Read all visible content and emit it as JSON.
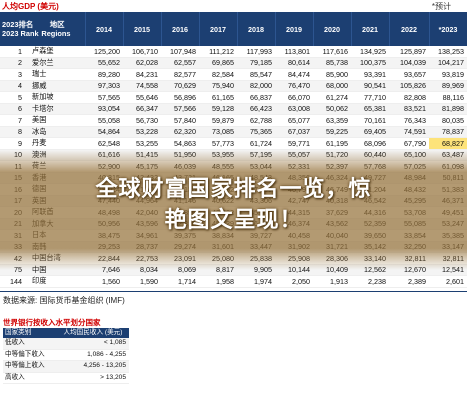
{
  "title": {
    "left": "人均GDP (美元)",
    "right": "*预计"
  },
  "header": {
    "rank_line1": "2023排名",
    "rank_line2": "2023 Rank",
    "region_line1": "地区",
    "region_line2": "Regions",
    "years": [
      "2014",
      "2015",
      "2016",
      "2017",
      "2018",
      "2019",
      "2020",
      "2021",
      "2022",
      "*2023"
    ]
  },
  "rows": [
    {
      "rank": "1",
      "name": "卢森堡",
      "values": [
        "125,200",
        "106,710",
        "107,948",
        "111,212",
        "117,993",
        "113,801",
        "117,616",
        "134,925",
        "125,897",
        "138,253"
      ]
    },
    {
      "rank": "2",
      "name": "爱尔兰",
      "values": [
        "55,652",
        "62,028",
        "62,557",
        "69,865",
        "79,185",
        "80,614",
        "85,738",
        "100,375",
        "104,039",
        "104,217"
      ]
    },
    {
      "rank": "3",
      "name": "瑞士",
      "values": [
        "89,280",
        "84,231",
        "82,577",
        "82,584",
        "85,547",
        "84,474",
        "85,900",
        "93,391",
        "93,657",
        "93,819"
      ]
    },
    {
      "rank": "4",
      "name": "挪威",
      "values": [
        "97,303",
        "74,558",
        "70,629",
        "75,940",
        "82,000",
        "76,470",
        "68,000",
        "90,541",
        "105,826",
        "89,969"
      ]
    },
    {
      "rank": "5",
      "name": "新加坡",
      "values": [
        "57,565",
        "55,646",
        "56,896",
        "61,165",
        "66,837",
        "66,070",
        "61,274",
        "77,710",
        "82,808",
        "88,116"
      ]
    },
    {
      "rank": "6",
      "name": "卡塔尔",
      "values": [
        "93,054",
        "66,347",
        "57,566",
        "59,128",
        "66,423",
        "63,008",
        "50,062",
        "65,381",
        "83,521",
        "81,898"
      ]
    },
    {
      "rank": "7",
      "name": "美国",
      "values": [
        "55,058",
        "56,730",
        "57,840",
        "59,879",
        "62,788",
        "65,077",
        "63,359",
        "70,161",
        "76,343",
        "80,035"
      ]
    },
    {
      "rank": "8",
      "name": "冰岛",
      "values": [
        "54,864",
        "53,228",
        "62,320",
        "73,085",
        "75,365",
        "67,037",
        "59,225",
        "69,405",
        "74,591",
        "78,837"
      ]
    },
    {
      "rank": "9",
      "name": "丹麦",
      "values": [
        "62,548",
        "53,255",
        "54,863",
        "57,773",
        "61,724",
        "59,771",
        "61,195",
        "68,096",
        "67,790",
        "68,827"
      ]
    },
    {
      "rank": "10",
      "name": "澳洲",
      "values": [
        "61,616",
        "51,415",
        "51,950",
        "53,955",
        "57,195",
        "55,057",
        "51,720",
        "60,440",
        "65,100",
        "63,487"
      ]
    },
    {
      "rank": "11",
      "name": "荷兰",
      "values": [
        "52,900",
        "45,175",
        "46,039",
        "48,555",
        "53,044",
        "52,331",
        "52,397",
        "57,768",
        "57,025",
        "61,098"
      ]
    },
    {
      "rank": "15",
      "name": "香港",
      "values": [
        "40,315",
        "42,432",
        "43,731",
        "46,165",
        "48,543",
        "48,356",
        "46,324",
        "49,727",
        "48,984",
        "50,811"
      ]
    },
    {
      "rank": "16",
      "name": "德国",
      "values": [
        "48,024",
        "41,103",
        "42,136",
        "44,652",
        "47,939",
        "46,794",
        "46,749",
        "51,204",
        "48,432",
        "51,383"
      ]
    },
    {
      "rank": "17",
      "name": "英国",
      "values": [
        "47,440",
        "44,964",
        "41,146",
        "40,622",
        "43,306",
        "42,747",
        "40,318",
        "46,542",
        "45,295",
        "46,371"
      ]
    },
    {
      "rank": "20",
      "name": "阿联酋",
      "values": [
        "48,498",
        "42,040",
        "40,891",
        "42,522",
        "45,658",
        "44,315",
        "37,629",
        "44,316",
        "53,708",
        "49,451"
      ]
    },
    {
      "rank": "21",
      "name": "加拿大",
      "values": [
        "50,956",
        "43,596",
        "42,316",
        "45,129",
        "46,548",
        "46,374",
        "43,562",
        "52,359",
        "55,085",
        "53,247"
      ]
    },
    {
      "rank": "31",
      "name": "日本",
      "values": [
        "38,475",
        "34,961",
        "39,375",
        "38,834",
        "39,727",
        "40,458",
        "40,040",
        "39,650",
        "33,854",
        "35,385"
      ]
    },
    {
      "rank": "33",
      "name": "南韩",
      "values": [
        "29,253",
        "28,737",
        "29,274",
        "31,601",
        "33,447",
        "31,902",
        "31,721",
        "35,142",
        "32,250",
        "33,147"
      ]
    },
    {
      "rank": "42",
      "name": "中国台湾",
      "values": [
        "22,844",
        "22,753",
        "23,091",
        "25,080",
        "25,838",
        "25,908",
        "28,306",
        "33,140",
        "32,811",
        "32,811"
      ]
    },
    {
      "rank": "75",
      "name": "中国",
      "values": [
        "7,646",
        "8,034",
        "8,069",
        "8,817",
        "9,905",
        "10,144",
        "10,409",
        "12,562",
        "12,670",
        "12,541"
      ]
    },
    {
      "rank": "144",
      "name": "印度",
      "values": [
        "1,560",
        "1,590",
        "1,714",
        "1,958",
        "1,974",
        "2,050",
        "1,913",
        "2,238",
        "2,389",
        "2,601"
      ]
    }
  ],
  "highlight_cell": {
    "row": 8,
    "col": 9
  },
  "source": "数据来源: 国际货币基金组织 (IMF)",
  "worldbank": {
    "title": "世界银行按收入水平划分国家",
    "head_left": "国家类别",
    "head_right": "人均国民收入 (美元)",
    "rows": [
      {
        "label": "低收入",
        "value": "< 1,085"
      },
      {
        "label": "中等偏下收入",
        "value": "1,086 - 4,255"
      },
      {
        "label": "中等偏上收入",
        "value": "4,256 - 13,205"
      },
      {
        "label": "高收入",
        "value": "> 13,205"
      }
    ]
  },
  "overlay": {
    "line1": "全球财富国家排名一览，惊",
    "line2": "艳图文呈现！"
  },
  "colors": {
    "header_bg": "#1c3f72",
    "title_red": "#d00000",
    "highlight": "#fde37a"
  }
}
